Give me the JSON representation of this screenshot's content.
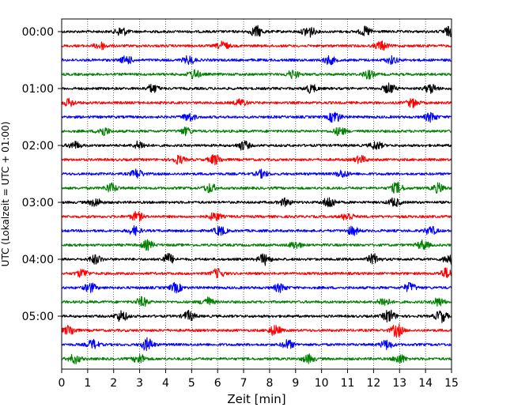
{
  "chart_data": {
    "type": "line",
    "subtype": "seismogram-helicorder",
    "title": "",
    "xlabel": "Zeit  [min]",
    "ylabel": "UTC (Lokalzeit = UTC + 01:00)",
    "xlim": [
      0,
      15
    ],
    "x_ticks": [
      0,
      1,
      2,
      3,
      4,
      5,
      6,
      7,
      8,
      9,
      10,
      11,
      12,
      13,
      14,
      15
    ],
    "x_tick_labels": [
      "0",
      "1",
      "2",
      "3",
      "4",
      "5",
      "6",
      "7",
      "8",
      "9",
      "10",
      "11",
      "12",
      "13",
      "14",
      "15"
    ],
    "y_tick_labels": [
      "00:00",
      "01:00",
      "02:00",
      "03:00",
      "04:00",
      "05:00"
    ],
    "y_tick_trace_index": [
      0,
      4,
      8,
      12,
      16,
      20
    ],
    "minutes_per_trace": 15,
    "trace_colors": [
      "#000000",
      "#ff0000",
      "#0000ff",
      "#008000"
    ],
    "grid": "vertical dotted",
    "traces": [
      {
        "start": "00:00",
        "color": "#000000",
        "bursts": [
          [
            2.3,
            1.0
          ],
          [
            7.5,
            1.2
          ],
          [
            9.5,
            1.3
          ],
          [
            11.7,
            1.0
          ],
          [
            14.9,
            1.0
          ]
        ]
      },
      {
        "start": "00:15",
        "color": "#ff0000",
        "bursts": [
          [
            1.5,
            0.8
          ],
          [
            6.2,
            0.9
          ],
          [
            12.3,
            1.0
          ]
        ]
      },
      {
        "start": "00:30",
        "color": "#0000ff",
        "bursts": [
          [
            2.5,
            0.9
          ],
          [
            4.9,
            0.9
          ],
          [
            10.3,
            0.9
          ],
          [
            12.7,
            0.8
          ]
        ]
      },
      {
        "start": "00:45",
        "color": "#008000",
        "bursts": [
          [
            5.1,
            1.0
          ],
          [
            8.9,
            0.9
          ],
          [
            11.8,
            0.9
          ]
        ]
      },
      {
        "start": "01:00",
        "color": "#000000",
        "bursts": [
          [
            3.5,
            0.9
          ],
          [
            9.6,
            0.9
          ],
          [
            12.6,
            1.1
          ],
          [
            14.2,
            1.0
          ]
        ]
      },
      {
        "start": "01:15",
        "color": "#ff0000",
        "bursts": [
          [
            0.3,
            0.8
          ],
          [
            6.9,
            0.8
          ],
          [
            13.5,
            0.9
          ]
        ]
      },
      {
        "start": "01:30",
        "color": "#0000ff",
        "bursts": [
          [
            4.9,
            0.9
          ],
          [
            10.5,
            1.3
          ],
          [
            14.2,
            1.0
          ]
        ]
      },
      {
        "start": "01:45",
        "color": "#008000",
        "bursts": [
          [
            1.6,
            1.0
          ],
          [
            4.8,
            0.8
          ],
          [
            10.7,
            0.9
          ]
        ]
      },
      {
        "start": "02:00",
        "color": "#000000",
        "bursts": [
          [
            0.5,
            0.8
          ],
          [
            3.0,
            0.9
          ],
          [
            7.0,
            1.0
          ],
          [
            12.1,
            0.9
          ]
        ]
      },
      {
        "start": "02:15",
        "color": "#ff0000",
        "bursts": [
          [
            4.5,
            0.9
          ],
          [
            5.9,
            1.1
          ],
          [
            11.5,
            0.8
          ]
        ]
      },
      {
        "start": "02:30",
        "color": "#0000ff",
        "bursts": [
          [
            2.9,
            1.0
          ],
          [
            7.7,
            0.8
          ],
          [
            10.8,
            0.8
          ]
        ]
      },
      {
        "start": "02:45",
        "color": "#008000",
        "bursts": [
          [
            1.9,
            1.0
          ],
          [
            5.7,
            1.0
          ],
          [
            12.9,
            1.2
          ],
          [
            14.5,
            1.0
          ]
        ]
      },
      {
        "start": "03:00",
        "color": "#000000",
        "bursts": [
          [
            1.3,
            0.9
          ],
          [
            8.6,
            0.8
          ],
          [
            10.3,
            1.3
          ],
          [
            12.8,
            0.9
          ]
        ]
      },
      {
        "start": "03:15",
        "color": "#ff0000",
        "bursts": [
          [
            2.9,
            1.0
          ],
          [
            5.9,
            0.9
          ],
          [
            11.0,
            0.9
          ]
        ]
      },
      {
        "start": "03:30",
        "color": "#0000ff",
        "bursts": [
          [
            2.8,
            0.9
          ],
          [
            6.1,
            1.0
          ],
          [
            11.2,
            0.9
          ],
          [
            14.2,
            0.9
          ]
        ]
      },
      {
        "start": "03:45",
        "color": "#008000",
        "bursts": [
          [
            3.3,
            1.0
          ],
          [
            9.0,
            0.8
          ],
          [
            13.9,
            1.0
          ]
        ]
      },
      {
        "start": "04:00",
        "color": "#000000",
        "bursts": [
          [
            1.3,
            1.0
          ],
          [
            4.1,
            1.2
          ],
          [
            7.8,
            1.2
          ],
          [
            12.0,
            1.1
          ],
          [
            14.9,
            1.0
          ]
        ]
      },
      {
        "start": "04:15",
        "color": "#ff0000",
        "bursts": [
          [
            0.8,
            0.9
          ],
          [
            6.0,
            1.0
          ],
          [
            14.8,
            1.1
          ]
        ]
      },
      {
        "start": "04:30",
        "color": "#0000ff",
        "bursts": [
          [
            1.1,
            1.0
          ],
          [
            4.4,
            1.0
          ],
          [
            8.4,
            0.9
          ],
          [
            13.4,
            1.0
          ]
        ]
      },
      {
        "start": "04:45",
        "color": "#008000",
        "bursts": [
          [
            3.1,
            1.0
          ],
          [
            5.6,
            1.0
          ],
          [
            12.4,
            1.0
          ],
          [
            14.5,
            0.9
          ]
        ]
      },
      {
        "start": "05:00",
        "color": "#000000",
        "bursts": [
          [
            2.3,
            1.2
          ],
          [
            4.9,
            1.1
          ],
          [
            12.6,
            1.4
          ],
          [
            14.6,
            1.3
          ]
        ]
      },
      {
        "start": "05:15",
        "color": "#ff0000",
        "bursts": [
          [
            0.3,
            1.1
          ],
          [
            8.2,
            1.1
          ],
          [
            12.9,
            1.4
          ]
        ]
      },
      {
        "start": "05:30",
        "color": "#0000ff",
        "bursts": [
          [
            1.2,
            1.0
          ],
          [
            3.3,
            1.4
          ],
          [
            8.7,
            1.0
          ],
          [
            12.5,
            1.0
          ]
        ]
      },
      {
        "start": "05:45",
        "color": "#008000",
        "bursts": [
          [
            0.5,
            1.0
          ],
          [
            3.0,
            1.0
          ],
          [
            9.5,
            0.9
          ],
          [
            13.0,
            1.0
          ]
        ]
      }
    ]
  }
}
